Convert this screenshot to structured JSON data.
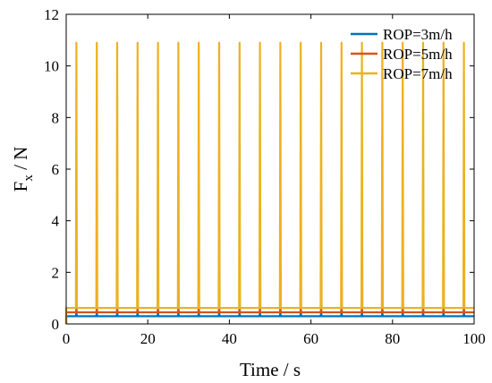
{
  "chart_data": {
    "type": "line",
    "title": "",
    "xlabel": "Time / s",
    "ylabel": "F",
    "ylabel_sub": "x",
    "ylabel_unit": " / N",
    "xlim": [
      0,
      100
    ],
    "ylim": [
      0,
      12
    ],
    "xticks": [
      0,
      20,
      40,
      60,
      80,
      100
    ],
    "yticks": [
      0,
      2,
      4,
      6,
      8,
      10,
      12
    ],
    "grid": false,
    "legend_position": "top-right",
    "spike_period": 5,
    "spike_first_time": 2.5,
    "spike_count": 20,
    "series": [
      {
        "name": "ROP=3m/h",
        "color": "#0072BD",
        "baseline": 0.3,
        "peak": 0.45
      },
      {
        "name": "ROP=5m/h",
        "color": "#D95319",
        "baseline": 0.45,
        "peak": 0.62
      },
      {
        "name": "ROP=7m/h",
        "color": "#EDB120",
        "baseline": 0.62,
        "peak": 10.9
      }
    ]
  }
}
